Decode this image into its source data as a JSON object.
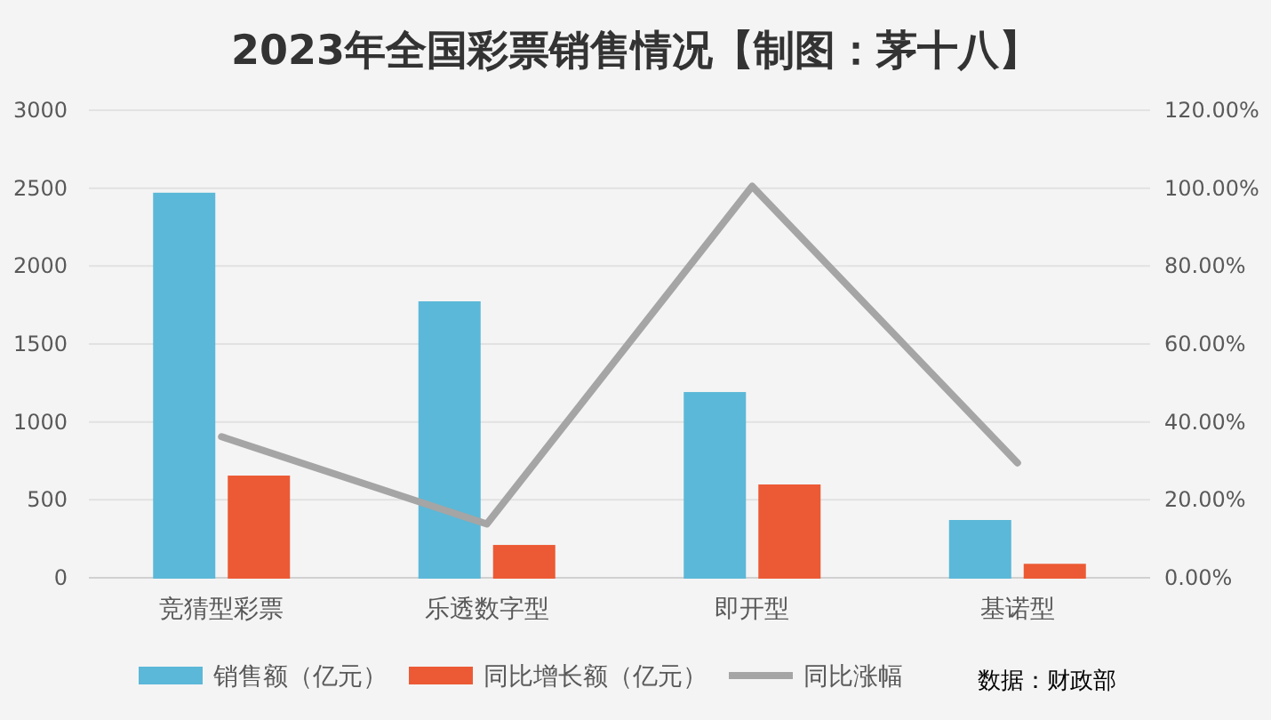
{
  "chart_data": {
    "type": "bar",
    "title": "2023年全国彩票销售情况【制图：茅十八】",
    "categories": [
      "竞猜型彩票",
      "乐透数字型",
      "即开型",
      "基诺型"
    ],
    "series": [
      {
        "name": "销售额（亿元）",
        "color": "#5bb8d8",
        "values": [
          2465,
          1768,
          1186,
          365
        ]
      },
      {
        "name": "同比增长额（亿元）",
        "color": "#ec5a35",
        "values": [
          650,
          205,
          593,
          84
        ]
      },
      {
        "name": "同比涨幅",
        "type": "line",
        "axis": "y2",
        "color": "#a5a5a5",
        "values": [
          36.2,
          13.8,
          100.5,
          29.5
        ]
      }
    ],
    "ylim": [
      0,
      3000
    ],
    "yticks": [
      0,
      500,
      1000,
      1500,
      2000,
      2500,
      3000
    ],
    "y2lim": [
      0,
      120
    ],
    "y2ticks": [
      {
        "value": 0,
        "label": "0.00%"
      },
      {
        "value": 20,
        "label": "20.00%"
      },
      {
        "value": 40,
        "label": "40.00%"
      },
      {
        "value": 60,
        "label": "60.00%"
      },
      {
        "value": 80,
        "label": "80.00%"
      },
      {
        "value": 100,
        "label": "100.00%"
      },
      {
        "value": 120,
        "label": "120.00%"
      }
    ],
    "grid": "y",
    "legend": "bottom",
    "annotations": [
      "数据：财政部"
    ]
  }
}
